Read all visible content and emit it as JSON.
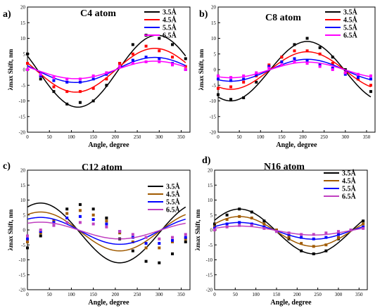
{
  "figure": {
    "panel_order": [
      "a)",
      "b)",
      "c)",
      "d)"
    ]
  },
  "chart_data": [
    {
      "type": "scatter",
      "panel_label": "a)",
      "title": "C4 atom",
      "xlabel": "Angle, degree",
      "ylabel": "λmax Shift, nm",
      "xlim": [
        0,
        370
      ],
      "ylim": [
        -20,
        20
      ],
      "xticks": [
        0,
        50,
        100,
        150,
        200,
        250,
        300,
        350
      ],
      "yticks": [
        -20,
        -15,
        -10,
        -5,
        0,
        5,
        10,
        15,
        20
      ],
      "grid": false,
      "legend_position": "top-right",
      "series": [
        {
          "name": "3.5Å",
          "color": "#000000",
          "x": [
            0,
            30,
            60,
            90,
            120,
            150,
            180,
            210,
            240,
            270,
            300,
            330,
            360
          ],
          "y": [
            5,
            -3,
            -7,
            -11,
            -10.5,
            -10,
            -5,
            2,
            8,
            11,
            10,
            8,
            3.5
          ],
          "fit": {
            "A": 11.5,
            "phi": 115,
            "c": -0.5
          }
        },
        {
          "name": "4.5Å",
          "color": "#ff0000",
          "x": [
            0,
            30,
            60,
            90,
            120,
            150,
            180,
            210,
            240,
            270,
            300,
            330,
            360
          ],
          "y": [
            2,
            -2,
            -5.5,
            -7,
            -7,
            -6,
            -3,
            2,
            5,
            7.5,
            6,
            4,
            1
          ],
          "fit": {
            "A": 7,
            "phi": 110,
            "c": -0.2
          }
        },
        {
          "name": "5.5Å",
          "color": "#0000ff",
          "x": [
            0,
            30,
            60,
            90,
            120,
            150,
            180,
            210,
            240,
            270,
            300,
            330,
            360
          ],
          "y": [
            0,
            -2,
            -3.5,
            -4,
            -4,
            -3,
            -1.5,
            1,
            3,
            4,
            3.5,
            2,
            0
          ],
          "fit": {
            "A": 4,
            "phi": 110,
            "c": -0.1
          }
        },
        {
          "name": "6.5Å",
          "color": "#ff00ff",
          "x": [
            0,
            30,
            60,
            90,
            120,
            150,
            180,
            210,
            240,
            270,
            300,
            330,
            360
          ],
          "y": [
            0,
            -1.5,
            -2.5,
            -3,
            -3,
            -2,
            -1,
            1,
            2,
            2.5,
            2.5,
            1.5,
            0
          ],
          "fit": {
            "A": 2.8,
            "phi": 110,
            "c": -0.1
          }
        }
      ]
    },
    {
      "type": "scatter",
      "panel_label": "b)",
      "title": "C8 atom",
      "xlabel": "Angle, degree",
      "ylabel": "λmax Shift, nm",
      "xlim": [
        0,
        370
      ],
      "ylim": [
        -20,
        20
      ],
      "xticks": [
        0,
        50,
        100,
        150,
        200,
        250,
        300,
        350
      ],
      "yticks": [
        -20,
        -15,
        -10,
        -5,
        0,
        5,
        10,
        15,
        20
      ],
      "grid": false,
      "legend_position": "top-right",
      "series": [
        {
          "name": "3.5Å",
          "color": "#000000",
          "x": [
            0,
            30,
            60,
            90,
            120,
            150,
            180,
            210,
            240,
            270,
            300,
            330,
            360
          ],
          "y": [
            -8,
            -9.5,
            -9,
            -4,
            1,
            4,
            8,
            10,
            7,
            4,
            0,
            -3,
            -7
          ],
          "fit": {
            "A": 9.5,
            "phi": 30,
            "c": -0.5
          }
        },
        {
          "name": "4.5Å",
          "color": "#ff0000",
          "x": [
            0,
            30,
            60,
            90,
            120,
            150,
            180,
            210,
            240,
            270,
            300,
            330,
            360
          ],
          "y": [
            -6,
            -5.5,
            -4,
            -2,
            1.5,
            4,
            6,
            6,
            5,
            2,
            -1,
            -3,
            -5
          ],
          "fit": {
            "A": 6,
            "phi": 30,
            "c": -0.3
          }
        },
        {
          "name": "5.5Å",
          "color": "#0000ff",
          "x": [
            0,
            30,
            60,
            90,
            120,
            150,
            180,
            210,
            240,
            270,
            300,
            330,
            360
          ],
          "y": [
            -3,
            -3.5,
            -3,
            -1.5,
            1,
            2.5,
            3.5,
            3,
            1.5,
            0.5,
            -1.5,
            -2.5,
            -3
          ],
          "fit": {
            "A": 3.5,
            "phi": 30,
            "c": -0.2
          }
        },
        {
          "name": "6.5Å",
          "color": "#ff00ff",
          "x": [
            0,
            30,
            60,
            90,
            120,
            150,
            180,
            210,
            240,
            270,
            300,
            330,
            360
          ],
          "y": [
            -2,
            -2.5,
            -2,
            -1,
            0.5,
            1.5,
            2.5,
            2,
            1,
            0,
            -1,
            -1.5,
            -2
          ],
          "fit": {
            "A": 2.5,
            "phi": 30,
            "c": -0.1
          }
        }
      ]
    },
    {
      "type": "scatter",
      "panel_label": "c)",
      "title": "C12 atom",
      "xlabel": "Angle, degree",
      "ylabel": "λmax Shift, nm",
      "xlim": [
        0,
        370
      ],
      "ylim": [
        -20,
        20
      ],
      "xticks": [
        0,
        50,
        100,
        150,
        200,
        250,
        300,
        350
      ],
      "yticks": [
        -20,
        -15,
        -10,
        -5,
        0,
        5,
        10,
        15,
        20
      ],
      "grid": false,
      "legend_position": "top-right",
      "series": [
        {
          "name": "3.5Å",
          "color": "#000000",
          "x": [
            0,
            30,
            60,
            90,
            120,
            150,
            180,
            210,
            240,
            270,
            300,
            330,
            360
          ],
          "y": [
            -6,
            -2,
            3,
            7,
            8.5,
            7,
            4,
            -3,
            -7,
            -10.5,
            -11,
            -8,
            -4
          ],
          "fit": {
            "A": 10,
            "phi": 210,
            "c": -1
          }
        },
        {
          "name": "4.5Å",
          "color": "#a05a00",
          "x": [
            0,
            30,
            60,
            90,
            120,
            150,
            180,
            210,
            240,
            270,
            300,
            330,
            360
          ],
          "y": [
            -4,
            -1,
            3,
            5.5,
            6.5,
            5,
            3,
            -1,
            -4,
            -6,
            -6,
            -4,
            -3
          ],
          "fit": {
            "A": 6.5,
            "phi": 210,
            "c": -0.5
          }
        },
        {
          "name": "5.5Å",
          "color": "#0000ff",
          "x": [
            0,
            30,
            60,
            90,
            120,
            150,
            180,
            210,
            240,
            270,
            300,
            330,
            360
          ],
          "y": [
            -3,
            -0.5,
            2.5,
            4,
            4.5,
            3.5,
            2,
            -0.5,
            -2.5,
            -4.5,
            -4.5,
            -3.5,
            -2.5
          ],
          "fit": {
            "A": 4.5,
            "phi": 210,
            "c": -0.3
          }
        },
        {
          "name": "6.5Å",
          "color": "#c040c0",
          "x": [
            0,
            30,
            60,
            90,
            120,
            150,
            180,
            210,
            240,
            270,
            300,
            330,
            360
          ],
          "y": [
            -2,
            0,
            1.5,
            2.5,
            2.5,
            2,
            1,
            -0.5,
            -1.5,
            -2.5,
            -3,
            -2.5,
            -1.5
          ],
          "fit": {
            "A": 2.8,
            "phi": 210,
            "c": -0.2
          }
        }
      ]
    },
    {
      "type": "scatter",
      "panel_label": "d)",
      "title": "N16 atom",
      "xlabel": "Angle, degree",
      "ylabel": "λmax Shift, nm",
      "xlim": [
        0,
        370
      ],
      "ylim": [
        -20,
        20
      ],
      "xticks": [
        0,
        50,
        100,
        150,
        200,
        250,
        300,
        350
      ],
      "yticks": [
        -20,
        -15,
        -10,
        -5,
        0,
        5,
        10,
        15,
        20
      ],
      "grid": false,
      "legend_position": "top-right",
      "series": [
        {
          "name": "3.5Å",
          "color": "#000000",
          "x": [
            0,
            30,
            60,
            90,
            120,
            150,
            180,
            210,
            240,
            270,
            300,
            330,
            360
          ],
          "y": [
            2,
            5,
            7,
            6,
            3,
            0,
            -3,
            -7,
            -8,
            -7,
            -3,
            0,
            3
          ],
          "fit": {
            "A": 7.5,
            "phi": 240,
            "c": -0.5
          }
        },
        {
          "name": "4.5Å",
          "color": "#a05a00",
          "x": [
            0,
            30,
            60,
            90,
            120,
            150,
            180,
            210,
            240,
            270,
            300,
            330,
            360
          ],
          "y": [
            1,
            3.5,
            4.5,
            4,
            2,
            0,
            -2,
            -4.5,
            -5.5,
            -5,
            -2.5,
            0,
            2
          ],
          "fit": {
            "A": 5,
            "phi": 240,
            "c": -0.5
          }
        },
        {
          "name": "5.5Å",
          "color": "#0000ff",
          "x": [
            0,
            30,
            60,
            90,
            120,
            150,
            180,
            210,
            240,
            270,
            300,
            330,
            360
          ],
          "y": [
            0.5,
            2,
            2.5,
            2,
            1,
            -0.5,
            -1.5,
            -2.5,
            -3,
            -2.5,
            -1.5,
            0,
            1
          ],
          "fit": {
            "A": 2.8,
            "phi": 240,
            "c": -0.3
          }
        },
        {
          "name": "6.5Å",
          "color": "#c040c0",
          "x": [
            0,
            30,
            60,
            90,
            120,
            150,
            180,
            210,
            240,
            270,
            300,
            330,
            360
          ],
          "y": [
            0,
            1,
            1.5,
            1.5,
            0.5,
            -0.5,
            -1,
            -1.5,
            -1.5,
            -1,
            -0.5,
            0,
            0.5
          ],
          "fit": {
            "A": 1.5,
            "phi": 240,
            "c": -0.2
          }
        }
      ]
    }
  ]
}
